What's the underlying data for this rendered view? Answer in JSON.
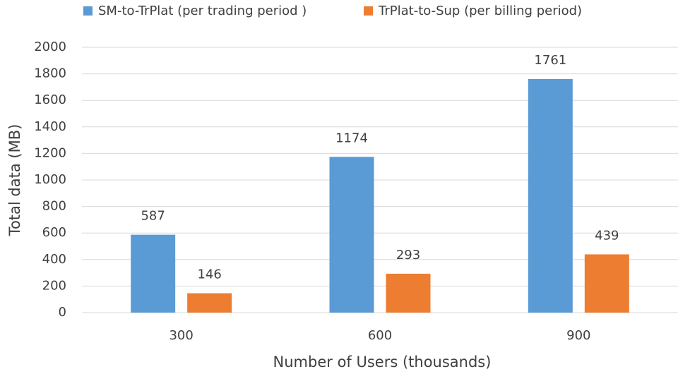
{
  "chart_data": {
    "type": "bar",
    "categories": [
      "300",
      "600",
      "900"
    ],
    "series": [
      {
        "name": "SM-to-TrPlat (per trading period )",
        "color": "#5b9bd5",
        "values": [
          587,
          1174,
          1761
        ]
      },
      {
        "name": "TrPlat-to-Sup (per billing period)",
        "color": "#ed7d31",
        "values": [
          146,
          293,
          439
        ]
      }
    ],
    "x_label": "Number of Users (thousands)",
    "y_label": "Total data (MB)",
    "ylim": [
      0,
      2000
    ],
    "yticks": [
      0,
      200,
      400,
      600,
      800,
      1000,
      1200,
      1400,
      1600,
      1800,
      2000
    ],
    "grid": true,
    "legend": "top"
  }
}
